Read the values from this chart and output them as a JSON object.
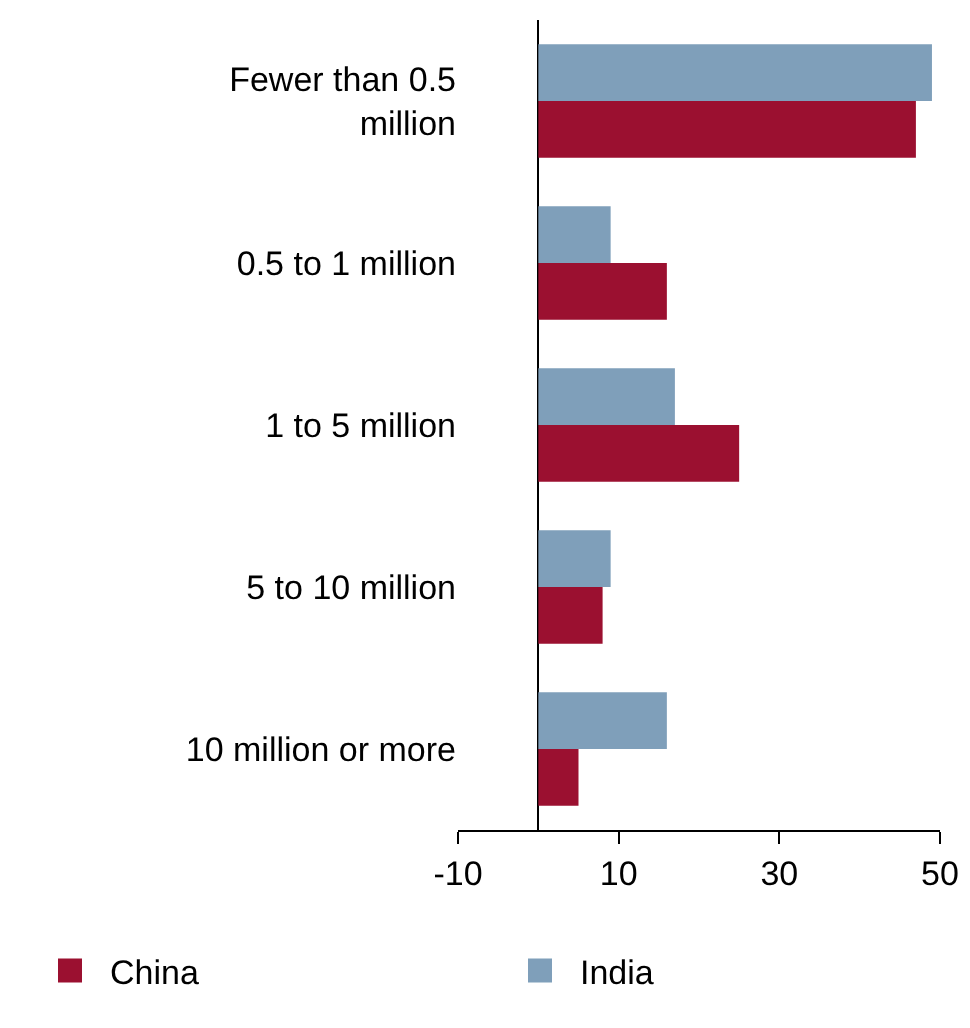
{
  "chart_data": {
    "type": "bar",
    "orientation": "horizontal",
    "categories": [
      "Fewer than 0.5 million",
      "0.5 to 1 million",
      "1 to 5 million",
      "5 to 10 million",
      "10 million or more"
    ],
    "series": [
      {
        "name": "China",
        "color": "#9b1030",
        "values": [
          47,
          16,
          25,
          8,
          5
        ]
      },
      {
        "name": "India",
        "color": "#7f9fba",
        "values": [
          49,
          9,
          17,
          9,
          16
        ]
      }
    ],
    "xlim": [
      -10,
      50
    ],
    "xticks": [
      -10,
      10,
      30,
      50
    ],
    "legend": "bottom"
  }
}
